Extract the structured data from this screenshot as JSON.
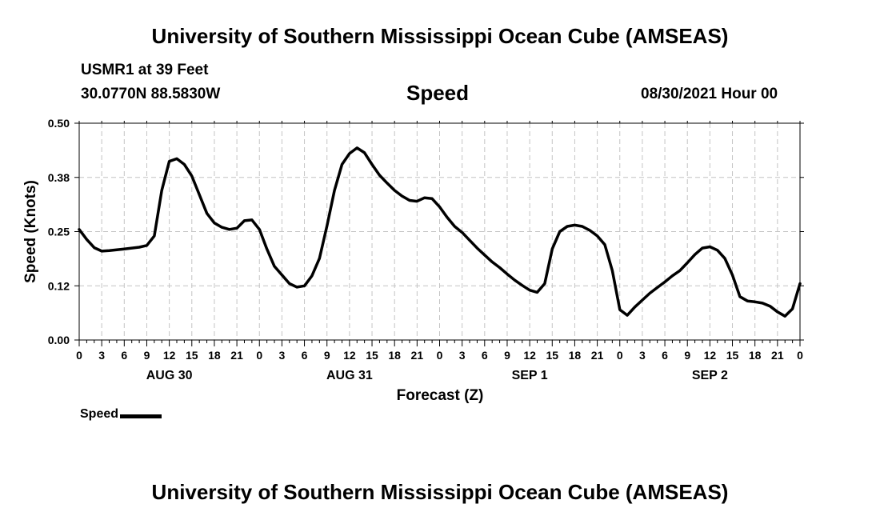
{
  "header": {
    "top_title": "University of Southern Mississippi Ocean Cube (AMSEAS)",
    "station": "USMR1 at 39 Feet",
    "coords": "30.0770N  88.5830W",
    "chart_title": "Speed",
    "timestamp": "08/30/2021 Hour 00"
  },
  "footer": {
    "bottom_title": "University of Southern Mississippi Ocean Cube (AMSEAS)"
  },
  "legend": {
    "label": "Speed"
  },
  "chart_data": {
    "type": "line",
    "title": "Speed",
    "xlabel": "Forecast (Z)",
    "ylabel": "Speed (Knots)",
    "xlim": [
      0,
      96
    ],
    "ylim": [
      0,
      0.5
    ],
    "grid": true,
    "y_ticks": [
      0.0,
      0.125,
      0.25,
      0.375,
      0.5
    ],
    "y_tick_labels": [
      "0.00",
      "0.12",
      "0.25",
      "0.38",
      "0.50"
    ],
    "x_ticks": [
      0,
      3,
      6,
      9,
      12,
      15,
      18,
      21,
      24,
      27,
      30,
      33,
      36,
      39,
      42,
      45,
      48,
      51,
      54,
      57,
      60,
      63,
      66,
      69,
      72,
      75,
      78,
      81,
      84,
      87,
      90,
      93,
      96
    ],
    "x_tick_labels": [
      "0",
      "3",
      "6",
      "9",
      "12",
      "15",
      "18",
      "21",
      "0",
      "3",
      "6",
      "9",
      "12",
      "15",
      "18",
      "21",
      "0",
      "3",
      "6",
      "9",
      "12",
      "15",
      "18",
      "21",
      "0",
      "3",
      "6",
      "9",
      "12",
      "15",
      "18",
      "21",
      "0"
    ],
    "date_labels": [
      {
        "hour": 12,
        "label": "AUG 30"
      },
      {
        "hour": 36,
        "label": "AUG 31"
      },
      {
        "hour": 60,
        "label": "SEP 1"
      },
      {
        "hour": 84,
        "label": "SEP 2"
      }
    ],
    "series": [
      {
        "name": "Speed",
        "x": [
          0,
          1,
          2,
          3,
          4,
          5,
          6,
          7,
          8,
          9,
          10,
          11,
          12,
          13,
          14,
          15,
          16,
          17,
          18,
          19,
          20,
          21,
          22,
          23,
          24,
          25,
          26,
          27,
          28,
          29,
          30,
          31,
          32,
          33,
          34,
          35,
          36,
          37,
          38,
          39,
          40,
          41,
          42,
          43,
          44,
          45,
          46,
          47,
          48,
          49,
          50,
          51,
          52,
          53,
          54,
          55,
          56,
          57,
          58,
          59,
          60,
          61,
          62,
          63,
          64,
          65,
          66,
          67,
          68,
          69,
          70,
          71,
          72,
          73,
          74,
          75,
          76,
          77,
          78,
          79,
          80,
          81,
          82,
          83,
          84,
          85,
          86,
          87,
          88,
          89,
          90,
          91,
          92,
          93,
          94,
          95,
          96
        ],
        "values": [
          0.255,
          0.232,
          0.213,
          0.205,
          0.206,
          0.208,
          0.21,
          0.212,
          0.214,
          0.218,
          0.24,
          0.345,
          0.412,
          0.418,
          0.405,
          0.378,
          0.335,
          0.292,
          0.27,
          0.26,
          0.255,
          0.258,
          0.275,
          0.277,
          0.255,
          0.21,
          0.17,
          0.15,
          0.13,
          0.122,
          0.125,
          0.148,
          0.188,
          0.263,
          0.345,
          0.405,
          0.43,
          0.443,
          0.432,
          0.405,
          0.38,
          0.362,
          0.345,
          0.332,
          0.322,
          0.32,
          0.328,
          0.326,
          0.307,
          0.283,
          0.262,
          0.248,
          0.23,
          0.212,
          0.196,
          0.18,
          0.167,
          0.152,
          0.138,
          0.126,
          0.115,
          0.11,
          0.13,
          0.21,
          0.25,
          0.262,
          0.265,
          0.262,
          0.253,
          0.24,
          0.22,
          0.16,
          0.07,
          0.057,
          0.076,
          0.092,
          0.108,
          0.121,
          0.134,
          0.148,
          0.16,
          0.178,
          0.197,
          0.212,
          0.215,
          0.207,
          0.188,
          0.15,
          0.1,
          0.09,
          0.088,
          0.085,
          0.078,
          0.065,
          0.055,
          0.072,
          0.13
        ]
      }
    ]
  }
}
